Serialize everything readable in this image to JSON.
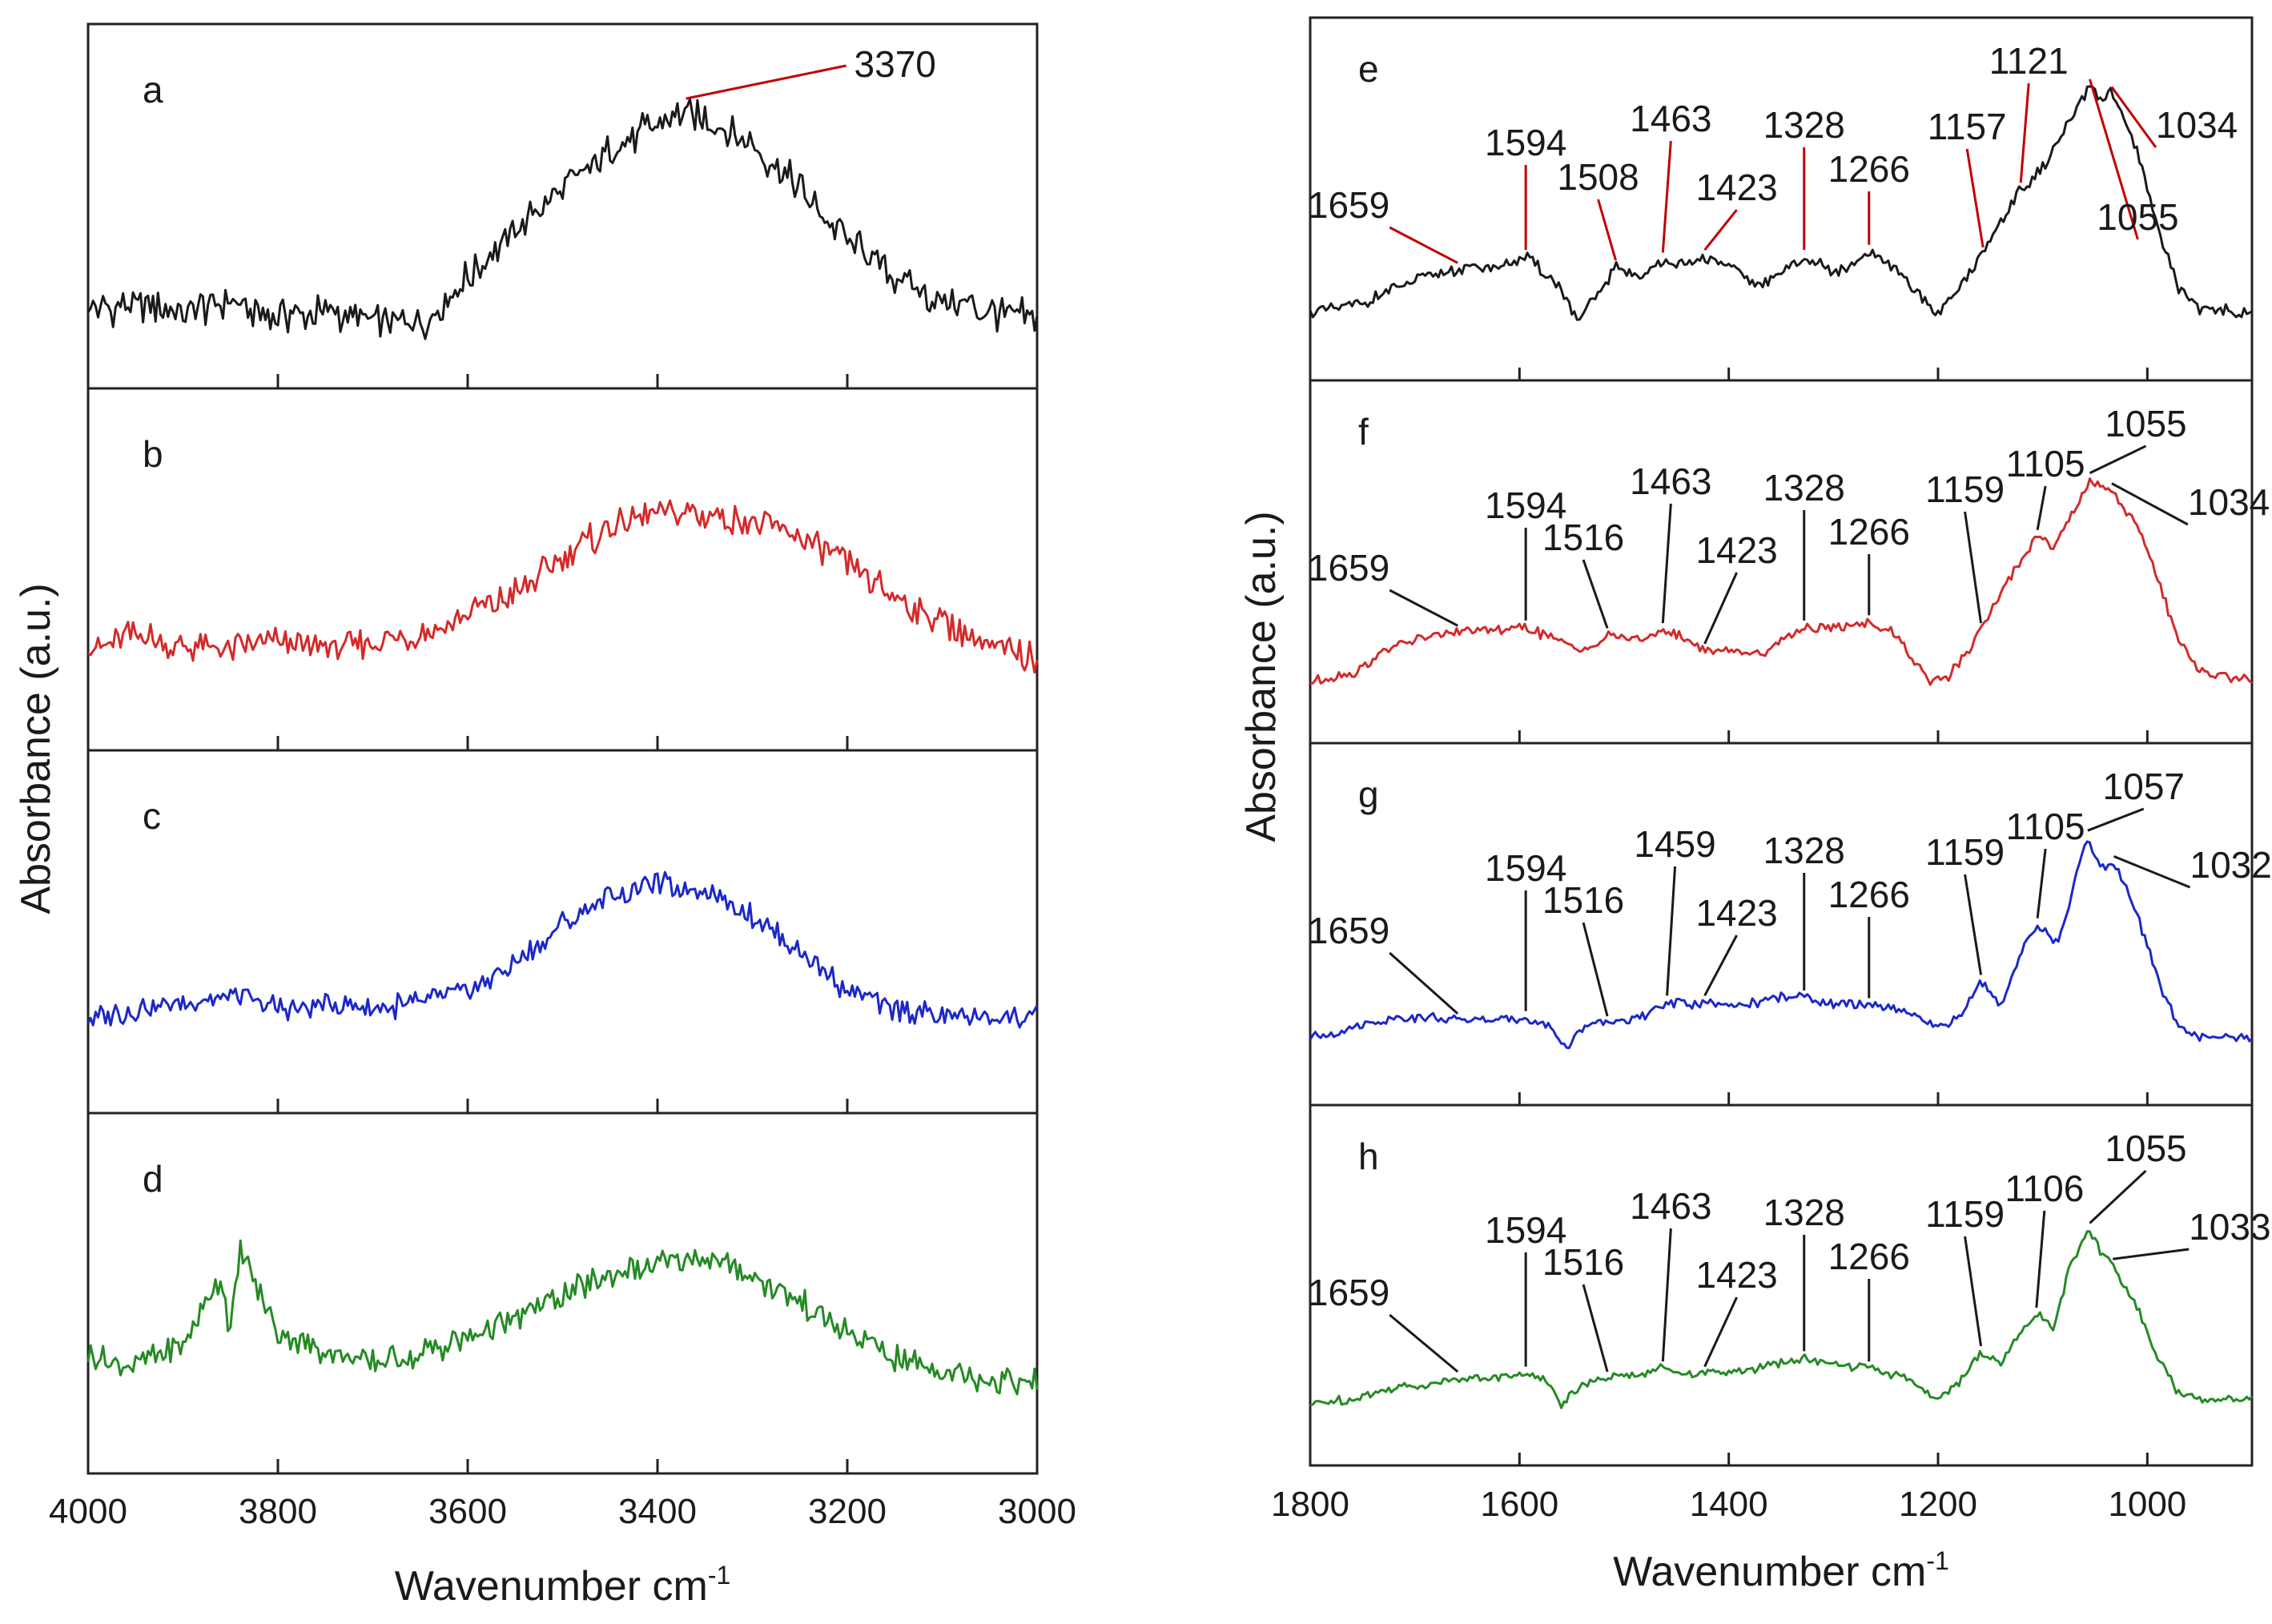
{
  "figure": {
    "background": "#ffffff"
  },
  "chart_data": [
    {
      "type": "line",
      "panel_group": "left",
      "xlabel": "Wavenumber cm",
      "xlabel_sup": "-1",
      "ylabel": "Absorbance (a.u.)",
      "xlim": [
        4000,
        3000
      ],
      "x_reversed": true,
      "x_ticks": [
        4000,
        3800,
        3600,
        3400,
        3200,
        3000
      ],
      "x_tick_labels": [
        "4000",
        "3800",
        "3600",
        "3400",
        "3200",
        "3000"
      ],
      "panels": [
        {
          "letter": "a",
          "color": "#1a1a1a",
          "peak_color": "#c00000",
          "peaks": [
            {
              "x": 3370,
              "label": "3370"
            }
          ],
          "x": [
            4000,
            3950,
            3900,
            3850,
            3800,
            3750,
            3700,
            3650,
            3600,
            3550,
            3500,
            3450,
            3400,
            3370,
            3350,
            3300,
            3250,
            3200,
            3150,
            3100,
            3050,
            3000
          ],
          "y": [
            0.2,
            0.21,
            0.19,
            0.22,
            0.18,
            0.19,
            0.16,
            0.15,
            0.3,
            0.45,
            0.58,
            0.7,
            0.79,
            0.82,
            0.8,
            0.72,
            0.58,
            0.42,
            0.3,
            0.22,
            0.19,
            0.17
          ]
        },
        {
          "letter": "b",
          "color": "#d42a2a",
          "peak_color": "#d42a2a",
          "peaks": [],
          "x": [
            4000,
            3950,
            3900,
            3850,
            3800,
            3750,
            3700,
            3650,
            3600,
            3550,
            3500,
            3450,
            3400,
            3350,
            3300,
            3250,
            3200,
            3150,
            3100,
            3050,
            3000
          ],
          "y": [
            0.28,
            0.32,
            0.28,
            0.27,
            0.3,
            0.27,
            0.3,
            0.32,
            0.38,
            0.45,
            0.56,
            0.66,
            0.7,
            0.7,
            0.68,
            0.63,
            0.54,
            0.44,
            0.36,
            0.28,
            0.24
          ]
        },
        {
          "letter": "c",
          "color": "#1c28c8",
          "peak_color": "#1c28c8",
          "peaks": [],
          "x": [
            4000,
            3950,
            3900,
            3850,
            3800,
            3750,
            3700,
            3650,
            3600,
            3550,
            3500,
            3450,
            3400,
            3350,
            3300,
            3250,
            3200,
            3150,
            3100,
            3050,
            3000
          ],
          "y": [
            0.25,
            0.28,
            0.3,
            0.32,
            0.28,
            0.29,
            0.28,
            0.3,
            0.34,
            0.42,
            0.55,
            0.64,
            0.68,
            0.66,
            0.58,
            0.46,
            0.34,
            0.28,
            0.26,
            0.25,
            0.26
          ]
        },
        {
          "letter": "d",
          "color": "#258a25",
          "peak_color": "#258a25",
          "peaks": [],
          "x": [
            4000,
            3950,
            3900,
            3860,
            3850,
            3840,
            3800,
            3750,
            3700,
            3650,
            3600,
            3550,
            3500,
            3450,
            3400,
            3350,
            3300,
            3250,
            3200,
            3150,
            3100,
            3050,
            3000
          ],
          "y": [
            0.32,
            0.3,
            0.36,
            0.58,
            0.4,
            0.66,
            0.4,
            0.34,
            0.3,
            0.33,
            0.38,
            0.44,
            0.52,
            0.58,
            0.62,
            0.64,
            0.58,
            0.5,
            0.4,
            0.32,
            0.28,
            0.25,
            0.24
          ]
        }
      ]
    },
    {
      "type": "line",
      "panel_group": "right",
      "xlabel": "Wavenumber cm",
      "xlabel_sup": "-1",
      "ylabel": "Absorbance (a.u.)",
      "xlim": [
        1800,
        900
      ],
      "x_reversed": true,
      "x_ticks": [
        1800,
        1600,
        1400,
        1200,
        1000
      ],
      "x_tick_labels": [
        "1800",
        "1600",
        "1400",
        "1200",
        "1000"
      ],
      "panels": [
        {
          "letter": "e",
          "color": "#1a1a1a",
          "peak_color": "#c00000",
          "x": [
            1800,
            1750,
            1700,
            1659,
            1620,
            1594,
            1560,
            1545,
            1520,
            1508,
            1480,
            1463,
            1440,
            1423,
            1400,
            1370,
            1350,
            1328,
            1300,
            1280,
            1266,
            1240,
            1200,
            1180,
            1157,
            1140,
            1121,
            1100,
            1080,
            1055,
            1045,
            1034,
            1010,
            990,
            970,
            950,
            900
          ],
          "y": [
            0.12,
            0.16,
            0.25,
            0.29,
            0.3,
            0.34,
            0.22,
            0.08,
            0.22,
            0.3,
            0.26,
            0.33,
            0.3,
            0.34,
            0.3,
            0.22,
            0.28,
            0.34,
            0.28,
            0.3,
            0.36,
            0.28,
            0.12,
            0.22,
            0.35,
            0.48,
            0.6,
            0.68,
            0.82,
            1.0,
            0.95,
            0.97,
            0.75,
            0.45,
            0.22,
            0.14,
            0.12
          ],
          "peaks": [
            {
              "x": 1659,
              "label": "1659"
            },
            {
              "x": 1594,
              "label": "1594"
            },
            {
              "x": 1508,
              "label": "1508"
            },
            {
              "x": 1463,
              "label": "1463"
            },
            {
              "x": 1423,
              "label": "1423"
            },
            {
              "x": 1328,
              "label": "1328"
            },
            {
              "x": 1266,
              "label": "1266"
            },
            {
              "x": 1157,
              "label": "1157"
            },
            {
              "x": 1121,
              "label": "1121"
            },
            {
              "x": 1055,
              "label": "1055"
            },
            {
              "x": 1034,
              "label": "1034"
            }
          ]
        },
        {
          "letter": "f",
          "color": "#d42a2a",
          "peak_color": "#1a1a1a",
          "x": [
            1800,
            1760,
            1720,
            1680,
            1659,
            1620,
            1594,
            1560,
            1530,
            1516,
            1480,
            1463,
            1440,
            1423,
            1400,
            1370,
            1350,
            1328,
            1300,
            1266,
            1240,
            1210,
            1190,
            1170,
            1159,
            1140,
            1120,
            1105,
            1090,
            1075,
            1055,
            1045,
            1034,
            1010,
            990,
            970,
            950,
            900
          ],
          "y": [
            0.1,
            0.13,
            0.24,
            0.28,
            0.29,
            0.3,
            0.31,
            0.25,
            0.22,
            0.28,
            0.26,
            0.3,
            0.26,
            0.22,
            0.22,
            0.2,
            0.26,
            0.31,
            0.3,
            0.33,
            0.28,
            0.1,
            0.12,
            0.22,
            0.3,
            0.44,
            0.58,
            0.66,
            0.62,
            0.72,
            0.88,
            0.86,
            0.84,
            0.7,
            0.5,
            0.25,
            0.14,
            0.1
          ],
          "peaks": [
            {
              "x": 1659,
              "label": "1659"
            },
            {
              "x": 1594,
              "label": "1594"
            },
            {
              "x": 1516,
              "label": "1516"
            },
            {
              "x": 1463,
              "label": "1463"
            },
            {
              "x": 1423,
              "label": "1423"
            },
            {
              "x": 1328,
              "label": "1328"
            },
            {
              "x": 1266,
              "label": "1266"
            },
            {
              "x": 1159,
              "label": "1159"
            },
            {
              "x": 1105,
              "label": "1105"
            },
            {
              "x": 1055,
              "label": "1055"
            },
            {
              "x": 1034,
              "label": "1034"
            }
          ]
        },
        {
          "letter": "g",
          "color": "#1c28c8",
          "peak_color": "#1a1a1a",
          "x": [
            1800,
            1760,
            1720,
            1680,
            1659,
            1620,
            1594,
            1570,
            1555,
            1540,
            1516,
            1480,
            1459,
            1440,
            1423,
            1400,
            1370,
            1350,
            1328,
            1300,
            1266,
            1230,
            1200,
            1180,
            1159,
            1140,
            1120,
            1105,
            1085,
            1070,
            1057,
            1045,
            1032,
            1010,
            990,
            970,
            950,
            900
          ],
          "y": [
            0.12,
            0.16,
            0.2,
            0.2,
            0.19,
            0.19,
            0.2,
            0.16,
            0.08,
            0.16,
            0.18,
            0.2,
            0.26,
            0.25,
            0.26,
            0.24,
            0.26,
            0.28,
            0.28,
            0.25,
            0.25,
            0.22,
            0.16,
            0.2,
            0.34,
            0.25,
            0.46,
            0.56,
            0.48,
            0.72,
            0.9,
            0.78,
            0.8,
            0.6,
            0.35,
            0.16,
            0.12,
            0.12
          ],
          "peaks": [
            {
              "x": 1659,
              "label": "1659"
            },
            {
              "x": 1594,
              "label": "1594"
            },
            {
              "x": 1516,
              "label": "1516"
            },
            {
              "x": 1459,
              "label": "1459"
            },
            {
              "x": 1423,
              "label": "1423"
            },
            {
              "x": 1328,
              "label": "1328"
            },
            {
              "x": 1266,
              "label": "1266"
            },
            {
              "x": 1159,
              "label": "1159"
            },
            {
              "x": 1105,
              "label": "1105"
            },
            {
              "x": 1057,
              "label": "1057"
            },
            {
              "x": 1032,
              "label": "1032"
            }
          ]
        },
        {
          "letter": "h",
          "color": "#258a25",
          "peak_color": "#1a1a1a",
          "x": [
            1800,
            1760,
            1720,
            1680,
            1659,
            1620,
            1594,
            1570,
            1560,
            1540,
            1516,
            1480,
            1463,
            1440,
            1423,
            1400,
            1370,
            1350,
            1328,
            1300,
            1266,
            1230,
            1200,
            1180,
            1159,
            1140,
            1120,
            1106,
            1090,
            1075,
            1055,
            1045,
            1033,
            1010,
            990,
            970,
            950,
            900
          ],
          "y": [
            0.1,
            0.12,
            0.16,
            0.18,
            0.2,
            0.2,
            0.22,
            0.18,
            0.1,
            0.18,
            0.2,
            0.22,
            0.24,
            0.22,
            0.22,
            0.22,
            0.24,
            0.26,
            0.28,
            0.25,
            0.24,
            0.2,
            0.12,
            0.18,
            0.3,
            0.26,
            0.38,
            0.45,
            0.4,
            0.62,
            0.78,
            0.7,
            0.64,
            0.48,
            0.28,
            0.14,
            0.12,
            0.12
          ],
          "peaks": [
            {
              "x": 1659,
              "label": "1659"
            },
            {
              "x": 1594,
              "label": "1594"
            },
            {
              "x": 1516,
              "label": "1516"
            },
            {
              "x": 1463,
              "label": "1463"
            },
            {
              "x": 1423,
              "label": "1423"
            },
            {
              "x": 1328,
              "label": "1328"
            },
            {
              "x": 1266,
              "label": "1266"
            },
            {
              "x": 1159,
              "label": "1159"
            },
            {
              "x": 1106,
              "label": "1106"
            },
            {
              "x": 1055,
              "label": "1055"
            },
            {
              "x": 1033,
              "label": "1033"
            }
          ]
        }
      ]
    }
  ]
}
